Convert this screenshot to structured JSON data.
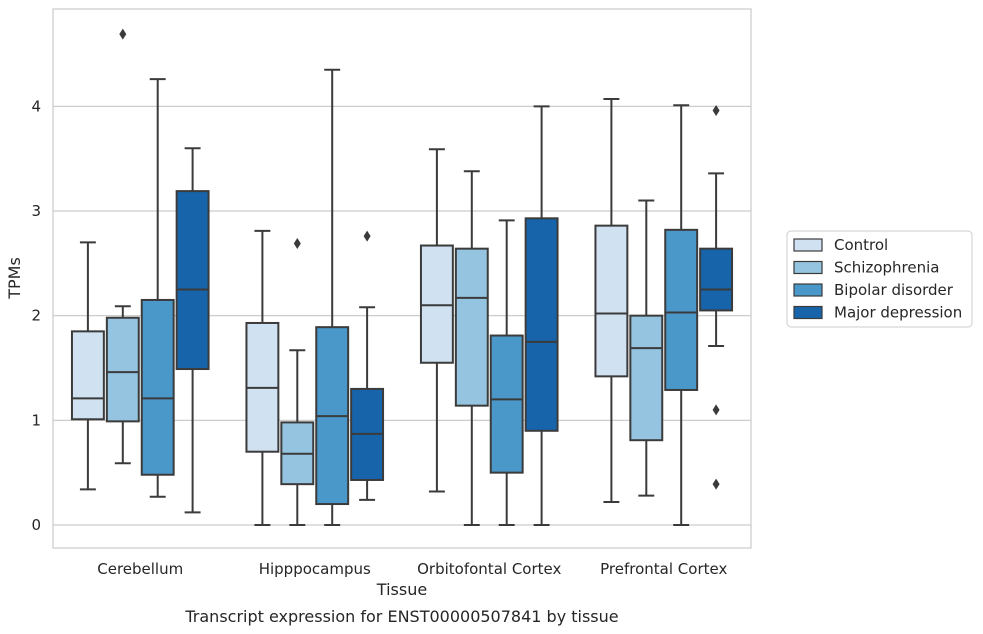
{
  "chart_data": {
    "type": "boxplot",
    "xlabel": "Tissue",
    "ylabel": "TPMs",
    "caption": "Transcript expression for ENST00000507841 by tissue",
    "ylim": [
      -0.22,
      4.93
    ],
    "yticks": [
      "0",
      "1",
      "2",
      "3",
      "4"
    ],
    "grid": true,
    "legend_position": "right",
    "categories": [
      "Cerebellum",
      "Hipppocampus",
      "Orbitofontal Cortex",
      "Prefrontal Cortex"
    ],
    "series": [
      {
        "name": "Control",
        "color": "#d0e1f2",
        "boxes": [
          {
            "whislo": 0.34,
            "q1": 1.01,
            "med": 1.21,
            "q3": 1.85,
            "whishi": 2.7,
            "fliers": []
          },
          {
            "whislo": 0.0,
            "q1": 0.7,
            "med": 1.31,
            "q3": 1.93,
            "whishi": 2.81,
            "fliers": []
          },
          {
            "whislo": 0.32,
            "q1": 1.55,
            "med": 2.1,
            "q3": 2.67,
            "whishi": 3.59,
            "fliers": []
          },
          {
            "whislo": 0.22,
            "q1": 1.42,
            "med": 2.02,
            "q3": 2.86,
            "whishi": 4.07,
            "fliers": []
          }
        ]
      },
      {
        "name": "Schizophrenia",
        "color": "#94c4df",
        "boxes": [
          {
            "whislo": 0.59,
            "q1": 0.99,
            "med": 1.46,
            "q3": 1.98,
            "whishi": 2.09,
            "fliers": [
              4.69
            ]
          },
          {
            "whislo": 0.0,
            "q1": 0.39,
            "med": 0.68,
            "q3": 0.98,
            "whishi": 1.67,
            "fliers": [
              2.69
            ]
          },
          {
            "whislo": 0.0,
            "q1": 1.14,
            "med": 2.17,
            "q3": 2.64,
            "whishi": 3.38,
            "fliers": []
          },
          {
            "whislo": 0.28,
            "q1": 0.81,
            "med": 1.69,
            "q3": 2.0,
            "whishi": 3.1,
            "fliers": []
          }
        ]
      },
      {
        "name": "Bipolar disorder",
        "color": "#4a98c9",
        "boxes": [
          {
            "whislo": 0.27,
            "q1": 0.48,
            "med": 1.21,
            "q3": 2.15,
            "whishi": 4.26,
            "fliers": []
          },
          {
            "whislo": 0.0,
            "q1": 0.2,
            "med": 1.04,
            "q3": 1.89,
            "whishi": 4.35,
            "fliers": []
          },
          {
            "whislo": 0.0,
            "q1": 0.5,
            "med": 1.2,
            "q3": 1.81,
            "whishi": 2.91,
            "fliers": []
          },
          {
            "whislo": 0.0,
            "q1": 1.29,
            "med": 2.03,
            "q3": 2.82,
            "whishi": 4.01,
            "fliers": []
          }
        ]
      },
      {
        "name": "Major depression",
        "color": "#1764ab",
        "boxes": [
          {
            "whislo": 0.12,
            "q1": 1.49,
            "med": 2.25,
            "q3": 3.19,
            "whishi": 3.6,
            "fliers": []
          },
          {
            "whislo": 0.24,
            "q1": 0.43,
            "med": 0.87,
            "q3": 1.3,
            "whishi": 2.08,
            "fliers": [
              2.76
            ]
          },
          {
            "whislo": 0.0,
            "q1": 0.9,
            "med": 1.75,
            "q3": 2.93,
            "whishi": 4.0,
            "fliers": []
          },
          {
            "whislo": 1.71,
            "q1": 2.05,
            "med": 2.25,
            "q3": 2.64,
            "whishi": 3.36,
            "fliers": [
              3.96,
              1.1,
              0.39
            ]
          }
        ]
      }
    ]
  }
}
